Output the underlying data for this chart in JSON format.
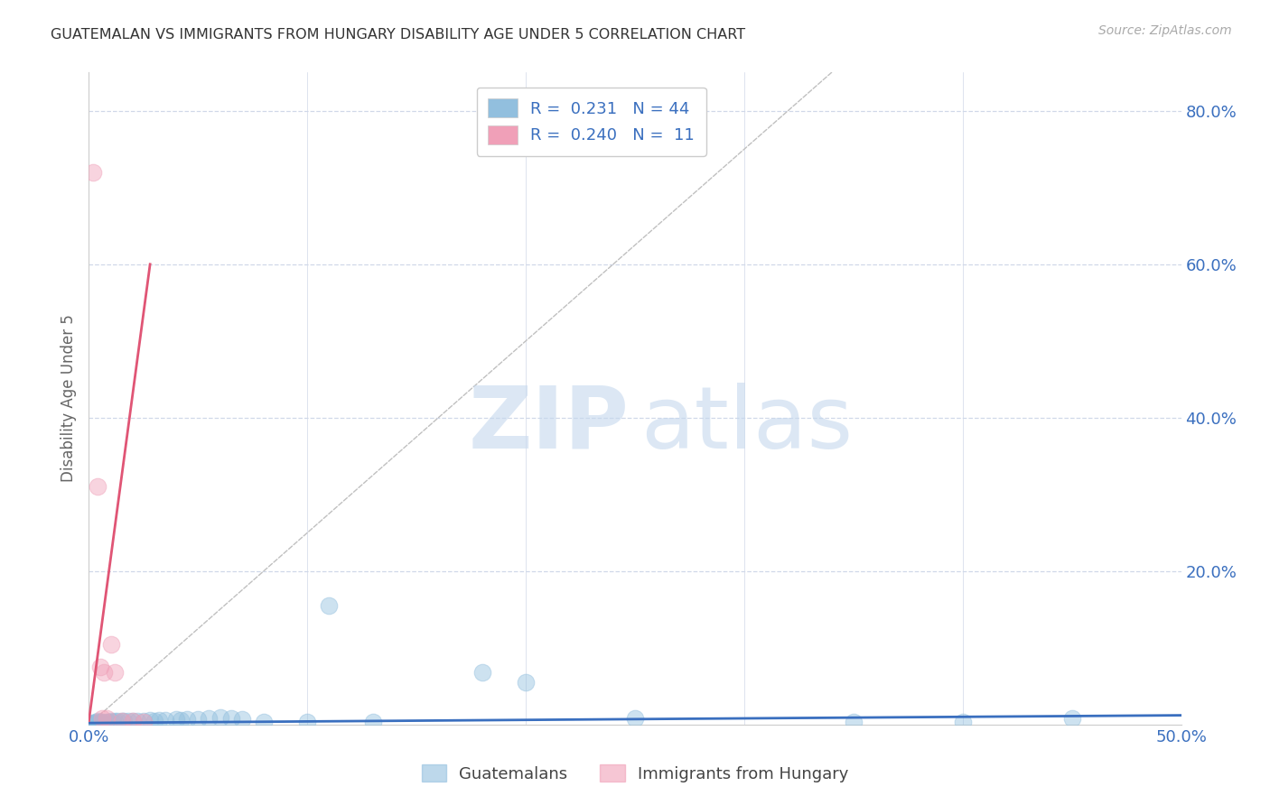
{
  "title": "GUATEMALAN VS IMMIGRANTS FROM HUNGARY DISABILITY AGE UNDER 5 CORRELATION CHART",
  "source": "Source: ZipAtlas.com",
  "ylabel": "Disability Age Under 5",
  "blue_scatter": [
    [
      0.001,
      0.002
    ],
    [
      0.002,
      0.001
    ],
    [
      0.003,
      0.003
    ],
    [
      0.003,
      0.002
    ],
    [
      0.004,
      0.002
    ],
    [
      0.004,
      0.004
    ],
    [
      0.005,
      0.003
    ],
    [
      0.005,
      0.002
    ],
    [
      0.006,
      0.003
    ],
    [
      0.007,
      0.002
    ],
    [
      0.008,
      0.003
    ],
    [
      0.009,
      0.003
    ],
    [
      0.01,
      0.004
    ],
    [
      0.011,
      0.003
    ],
    [
      0.012,
      0.004
    ],
    [
      0.013,
      0.004
    ],
    [
      0.015,
      0.005
    ],
    [
      0.016,
      0.004
    ],
    [
      0.018,
      0.005
    ],
    [
      0.02,
      0.004
    ],
    [
      0.022,
      0.005
    ],
    [
      0.025,
      0.005
    ],
    [
      0.028,
      0.006
    ],
    [
      0.03,
      0.005
    ],
    [
      0.032,
      0.006
    ],
    [
      0.035,
      0.006
    ],
    [
      0.04,
      0.007
    ],
    [
      0.042,
      0.006
    ],
    [
      0.045,
      0.007
    ],
    [
      0.05,
      0.007
    ],
    [
      0.055,
      0.008
    ],
    [
      0.06,
      0.009
    ],
    [
      0.065,
      0.008
    ],
    [
      0.07,
      0.007
    ],
    [
      0.08,
      0.003
    ],
    [
      0.1,
      0.003
    ],
    [
      0.11,
      0.155
    ],
    [
      0.13,
      0.003
    ],
    [
      0.18,
      0.068
    ],
    [
      0.2,
      0.055
    ],
    [
      0.25,
      0.008
    ],
    [
      0.35,
      0.003
    ],
    [
      0.4,
      0.003
    ],
    [
      0.45,
      0.008
    ]
  ],
  "pink_scatter": [
    [
      0.002,
      0.72
    ],
    [
      0.004,
      0.31
    ],
    [
      0.005,
      0.075
    ],
    [
      0.006,
      0.008
    ],
    [
      0.007,
      0.068
    ],
    [
      0.008,
      0.008
    ],
    [
      0.01,
      0.105
    ],
    [
      0.012,
      0.068
    ],
    [
      0.015,
      0.005
    ],
    [
      0.02,
      0.005
    ],
    [
      0.025,
      0.003
    ]
  ],
  "blue_line_x": [
    0.0,
    0.5
  ],
  "blue_line_y": [
    0.002,
    0.012
  ],
  "pink_line_x": [
    0.0,
    0.028
  ],
  "pink_line_y": [
    0.005,
    0.6
  ],
  "gray_dashed_line_x": [
    0.0,
    0.34
  ],
  "gray_dashed_line_y": [
    0.0,
    0.85
  ],
  "xlim": [
    0.0,
    0.5
  ],
  "ylim": [
    0.0,
    0.85
  ],
  "ytick_positions": [
    0.2,
    0.4,
    0.6,
    0.8
  ],
  "ytick_labels": [
    "20.0%",
    "40.0%",
    "60.0%",
    "80.0%"
  ],
  "xtick_labels": [
    "0.0%",
    "",
    "",
    "",
    "",
    "50.0%"
  ],
  "blue_color": "#92bfde",
  "pink_color": "#f0a0b8",
  "blue_line_color": "#3a6fbf",
  "pink_line_color": "#e05575",
  "grid_color": "#d0d8e8",
  "bg_color": "#ffffff",
  "title_color": "#333333",
  "axis_label_color": "#3a6fbf",
  "tick_label_color": "#3a6fbf"
}
